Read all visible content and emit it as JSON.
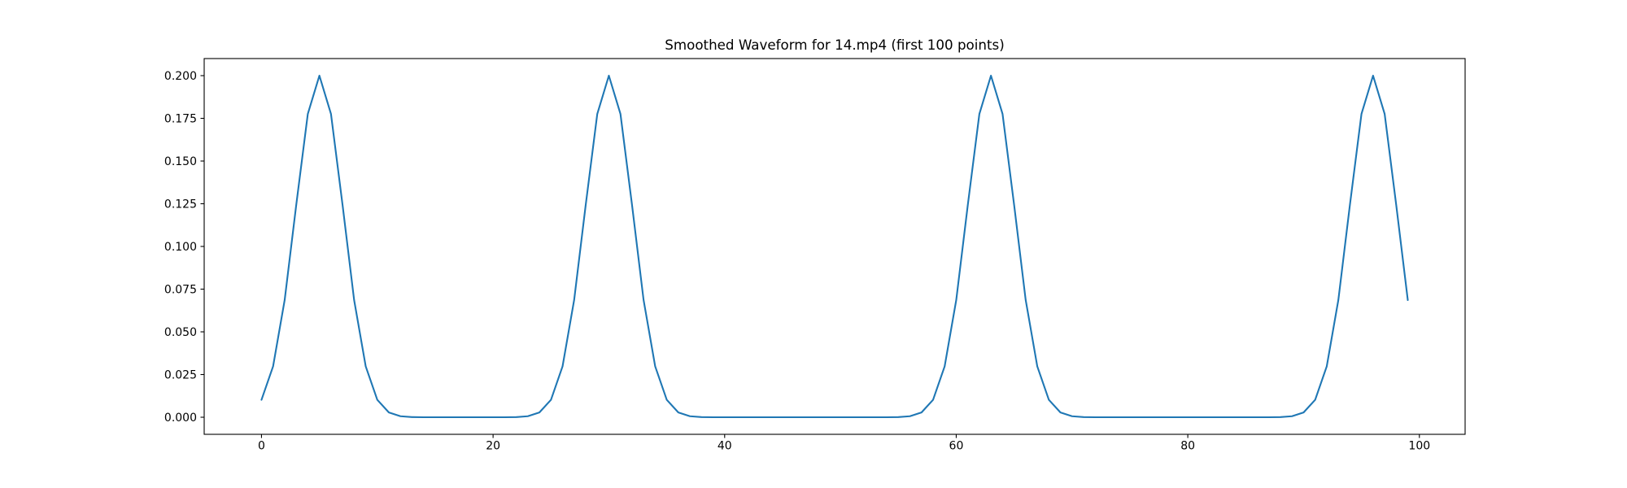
{
  "chart_data": {
    "type": "line",
    "title": "Smoothed Waveform for 14.mp4 (first 100 points)",
    "xlabel": "",
    "ylabel": "",
    "x": [
      0,
      1,
      2,
      3,
      4,
      5,
      6,
      7,
      8,
      9,
      10,
      11,
      12,
      13,
      14,
      15,
      16,
      17,
      18,
      19,
      20,
      21,
      22,
      23,
      24,
      25,
      26,
      27,
      28,
      29,
      30,
      31,
      32,
      33,
      34,
      35,
      36,
      37,
      38,
      39,
      40,
      41,
      42,
      43,
      44,
      45,
      46,
      47,
      48,
      49,
      50,
      51,
      52,
      53,
      54,
      55,
      56,
      57,
      58,
      59,
      60,
      61,
      62,
      63,
      64,
      65,
      66,
      67,
      68,
      69,
      70,
      71,
      72,
      73,
      74,
      75,
      76,
      77,
      78,
      79,
      80,
      81,
      82,
      83,
      84,
      85,
      86,
      87,
      88,
      89,
      90,
      91,
      92,
      93,
      94,
      95,
      96,
      97,
      98,
      99
    ],
    "y": [
      0.0102,
      0.0298,
      0.0686,
      0.1243,
      0.1776,
      0.2,
      0.1776,
      0.1243,
      0.0686,
      0.0298,
      0.0102,
      0.0028,
      0.0006,
      0.0001,
      0,
      0,
      0,
      0,
      0,
      0,
      0,
      0,
      0.0001,
      0.0006,
      0.0028,
      0.0102,
      0.0298,
      0.0686,
      0.1243,
      0.1776,
      0.2,
      0.1776,
      0.1243,
      0.0686,
      0.0298,
      0.0102,
      0.0028,
      0.0006,
      0.0001,
      0,
      0,
      0,
      0,
      0,
      0,
      0,
      0,
      0,
      0,
      0,
      0,
      0,
      0,
      0,
      0,
      0.0001,
      0.0006,
      0.0028,
      0.0102,
      0.0298,
      0.0686,
      0.1243,
      0.1776,
      0.2,
      0.1776,
      0.1243,
      0.0686,
      0.0298,
      0.0102,
      0.0028,
      0.0006,
      0.0001,
      0,
      0,
      0,
      0,
      0,
      0,
      0,
      0,
      0,
      0,
      0,
      0,
      0,
      0,
      0,
      0,
      0.0001,
      0.0006,
      0.0028,
      0.0102,
      0.0298,
      0.0686,
      0.1243,
      0.1776,
      0.2,
      0.1776,
      0.1243,
      0.0686
    ],
    "peak_positions": [
      5,
      30,
      63,
      96
    ],
    "peak_value": 0.2,
    "xlim": [
      -4.95,
      103.95
    ],
    "ylim": [
      -0.01,
      0.21
    ],
    "xticks": [
      0,
      20,
      40,
      60,
      80,
      100
    ],
    "xtick_labels": [
      "0",
      "20",
      "40",
      "60",
      "80",
      "100"
    ],
    "yticks": [
      0.0,
      0.025,
      0.05,
      0.075,
      0.1,
      0.125,
      0.15,
      0.175,
      0.2
    ],
    "ytick_labels": [
      "0.000",
      "0.025",
      "0.050",
      "0.075",
      "0.100",
      "0.125",
      "0.150",
      "0.175",
      "0.200"
    ],
    "grid": false,
    "legend": false,
    "line_color": "#1f77b4",
    "axis_color": "#000000",
    "background": "#ffffff"
  }
}
